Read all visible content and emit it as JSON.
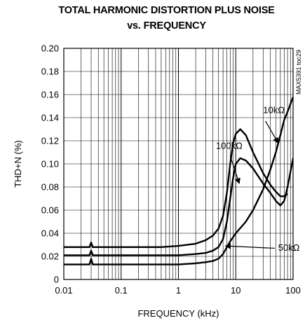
{
  "chart_data": {
    "type": "line",
    "title": "TOTAL HARMONIC DISTORTION PLUS NOISE",
    "subtitle": "vs. FREQUENCY",
    "xlabel": "FREQUENCY (kHz)",
    "ylabel": "THD+N (%)",
    "x_scale": "log",
    "xlim": [
      0.01,
      100
    ],
    "ylim": [
      0,
      0.2
    ],
    "x_ticks": [
      "0.01",
      "0.1",
      "1",
      "10",
      "100"
    ],
    "y_ticks": [
      "0",
      "0.02",
      "0.04",
      "0.06",
      "0.08",
      "0.10",
      "0.12",
      "0.14",
      "0.16",
      "0.18",
      "0.20"
    ],
    "grid": true,
    "side_note": "MAX5391 toc29",
    "series": [
      {
        "name": "10kΩ",
        "x": [
          0.01,
          0.02,
          0.028,
          0.03,
          0.032,
          0.05,
          0.1,
          0.2,
          0.5,
          1,
          2,
          3,
          4,
          5,
          6,
          7,
          8,
          10,
          15,
          20,
          30,
          40,
          50,
          60,
          70,
          80,
          100
        ],
        "y": [
          0.013,
          0.013,
          0.013,
          0.018,
          0.013,
          0.013,
          0.013,
          0.013,
          0.013,
          0.013,
          0.014,
          0.015,
          0.016,
          0.018,
          0.022,
          0.028,
          0.033,
          0.04,
          0.05,
          0.06,
          0.078,
          0.095,
          0.11,
          0.125,
          0.138,
          0.145,
          0.158
        ]
      },
      {
        "name": "50kΩ",
        "x": [
          0.01,
          0.02,
          0.028,
          0.03,
          0.032,
          0.05,
          0.1,
          0.2,
          0.5,
          1,
          2,
          3,
          4,
          5,
          6,
          7,
          8,
          9,
          10,
          12,
          15,
          20,
          30,
          40,
          50,
          60,
          70,
          80,
          100
        ],
        "y": [
          0.021,
          0.021,
          0.021,
          0.025,
          0.021,
          0.021,
          0.021,
          0.021,
          0.021,
          0.021,
          0.022,
          0.023,
          0.025,
          0.028,
          0.035,
          0.05,
          0.07,
          0.088,
          0.1,
          0.105,
          0.103,
          0.096,
          0.083,
          0.075,
          0.068,
          0.064,
          0.068,
          0.08,
          0.105
        ]
      },
      {
        "name": "100kΩ",
        "x": [
          0.01,
          0.02,
          0.028,
          0.03,
          0.032,
          0.05,
          0.1,
          0.2,
          0.5,
          1,
          2,
          3,
          4,
          5,
          6,
          7,
          8,
          9,
          10,
          12,
          15,
          20,
          30,
          40,
          50,
          60,
          70,
          80
        ],
        "y": [
          0.028,
          0.028,
          0.028,
          0.032,
          0.028,
          0.028,
          0.028,
          0.028,
          0.028,
          0.029,
          0.031,
          0.034,
          0.038,
          0.044,
          0.055,
          0.075,
          0.1,
          0.118,
          0.126,
          0.13,
          0.125,
          0.11,
          0.092,
          0.082,
          0.076,
          0.072,
          0.072,
          0.074
        ]
      }
    ]
  }
}
